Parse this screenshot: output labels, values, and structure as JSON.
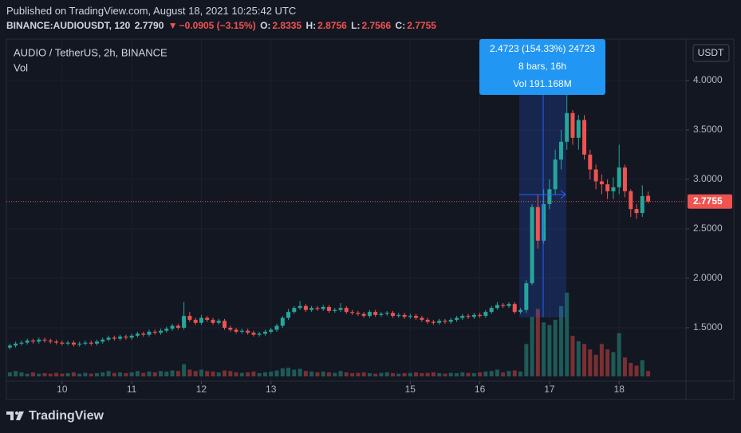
{
  "header": {
    "published": "Published on TradingView.com, August 18, 2021 10:25:42 UTC",
    "symbol": "BINANCE:AUDIOUSDT, 120",
    "last": "2.7790",
    "change": "−0.0905 (−3.15%)",
    "open_label": "O:",
    "open": "2.8335",
    "high_label": "H:",
    "high": "2.8756",
    "low_label": "L:",
    "low": "2.7566",
    "close_label": "C:",
    "close": "2.7755"
  },
  "chart_data": {
    "type": "candlestick",
    "legend": "AUDIO / TetherUS, 2h, BINANCE",
    "volume_label": "Vol",
    "currency": "USDT",
    "up_color": "#26a69a",
    "down_color": "#ef5350",
    "volume_up_color": "#1e5a57",
    "volume_down_color": "#7b2f33",
    "x": [
      9.25,
      9.333,
      9.417,
      9.5,
      9.583,
      9.667,
      9.75,
      9.833,
      9.917,
      10,
      10.083,
      10.167,
      10.25,
      10.333,
      10.417,
      10.5,
      10.583,
      10.667,
      10.75,
      10.833,
      10.917,
      11,
      11.083,
      11.167,
      11.25,
      11.333,
      11.417,
      11.5,
      11.583,
      11.667,
      11.75,
      11.833,
      11.917,
      12,
      12.083,
      12.167,
      12.25,
      12.333,
      12.417,
      12.5,
      12.583,
      12.667,
      12.75,
      12.833,
      12.917,
      13,
      13.083,
      13.167,
      13.25,
      13.333,
      13.417,
      13.5,
      13.583,
      13.667,
      13.75,
      13.833,
      13.917,
      14,
      14.083,
      14.167,
      14.25,
      14.333,
      14.417,
      14.5,
      14.583,
      14.667,
      14.75,
      14.833,
      14.917,
      15,
      15.083,
      15.167,
      15.25,
      15.333,
      15.417,
      15.5,
      15.583,
      15.667,
      15.75,
      15.833,
      15.917,
      16,
      16.083,
      16.167,
      16.25,
      16.333,
      16.417,
      16.5,
      16.583,
      16.667,
      16.75,
      16.833,
      16.917,
      17,
      17.083,
      17.167,
      17.25,
      17.333,
      17.417,
      17.5,
      17.583,
      17.667,
      17.75,
      17.833,
      17.917,
      18,
      18.083,
      18.167,
      18.25,
      18.333,
      18.417
    ],
    "open": [
      1.3,
      1.32,
      1.34,
      1.35,
      1.37,
      1.36,
      1.38,
      1.37,
      1.36,
      1.35,
      1.34,
      1.35,
      1.33,
      1.34,
      1.35,
      1.34,
      1.36,
      1.38,
      1.4,
      1.39,
      1.41,
      1.4,
      1.42,
      1.44,
      1.43,
      1.46,
      1.45,
      1.47,
      1.49,
      1.52,
      1.5,
      1.62,
      1.58,
      1.55,
      1.6,
      1.58,
      1.55,
      1.57,
      1.5,
      1.48,
      1.46,
      1.47,
      1.45,
      1.43,
      1.44,
      1.46,
      1.48,
      1.52,
      1.6,
      1.66,
      1.7,
      1.72,
      1.68,
      1.7,
      1.69,
      1.71,
      1.67,
      1.68,
      1.7,
      1.66,
      1.65,
      1.64,
      1.62,
      1.66,
      1.63,
      1.64,
      1.65,
      1.62,
      1.63,
      1.61,
      1.62,
      1.6,
      1.58,
      1.56,
      1.55,
      1.57,
      1.56,
      1.58,
      1.6,
      1.62,
      1.61,
      1.63,
      1.62,
      1.66,
      1.7,
      1.73,
      1.72,
      1.74,
      1.66,
      1.68,
      1.95,
      2.72,
      2.38,
      2.75,
      2.9,
      3.2,
      3.38,
      3.67,
      3.42,
      3.6,
      3.25,
      3.1,
      2.98,
      2.95,
      2.88,
      2.92,
      3.12,
      2.88,
      2.7,
      2.66,
      2.8335
    ],
    "high": [
      1.34,
      1.36,
      1.37,
      1.39,
      1.39,
      1.4,
      1.4,
      1.39,
      1.38,
      1.37,
      1.37,
      1.37,
      1.36,
      1.37,
      1.37,
      1.38,
      1.4,
      1.42,
      1.42,
      1.43,
      1.43,
      1.44,
      1.46,
      1.46,
      1.48,
      1.48,
      1.49,
      1.51,
      1.54,
      1.54,
      1.76,
      1.66,
      1.6,
      1.63,
      1.62,
      1.6,
      1.59,
      1.59,
      1.52,
      1.5,
      1.49,
      1.49,
      1.47,
      1.46,
      1.48,
      1.5,
      1.54,
      1.62,
      1.69,
      1.72,
      1.77,
      1.74,
      1.72,
      1.72,
      1.73,
      1.73,
      1.7,
      1.75,
      1.72,
      1.68,
      1.67,
      1.66,
      1.68,
      1.68,
      1.66,
      1.67,
      1.67,
      1.65,
      1.65,
      1.64,
      1.64,
      1.62,
      1.6,
      1.58,
      1.59,
      1.59,
      1.6,
      1.62,
      1.64,
      1.64,
      1.65,
      1.65,
      1.68,
      1.72,
      1.76,
      1.75,
      1.76,
      1.76,
      1.7,
      1.98,
      2.75,
      2.85,
      2.9,
      3.0,
      3.3,
      3.5,
      4.1,
      3.7,
      3.65,
      3.65,
      3.3,
      3.15,
      3.05,
      3.0,
      3.02,
      3.35,
      3.15,
      2.9,
      2.75,
      2.94,
      2.8756
    ],
    "low": [
      1.28,
      1.3,
      1.32,
      1.33,
      1.34,
      1.34,
      1.35,
      1.34,
      1.33,
      1.32,
      1.32,
      1.31,
      1.31,
      1.32,
      1.32,
      1.32,
      1.34,
      1.36,
      1.37,
      1.37,
      1.38,
      1.38,
      1.4,
      1.41,
      1.41,
      1.43,
      1.43,
      1.45,
      1.47,
      1.48,
      1.48,
      1.56,
      1.53,
      1.53,
      1.56,
      1.53,
      1.53,
      1.48,
      1.46,
      1.44,
      1.44,
      1.43,
      1.41,
      1.41,
      1.42,
      1.44,
      1.46,
      1.5,
      1.58,
      1.64,
      1.68,
      1.66,
      1.66,
      1.67,
      1.67,
      1.65,
      1.65,
      1.66,
      1.64,
      1.63,
      1.62,
      1.6,
      1.6,
      1.61,
      1.61,
      1.62,
      1.6,
      1.6,
      1.59,
      1.59,
      1.58,
      1.56,
      1.54,
      1.53,
      1.53,
      1.54,
      1.54,
      1.56,
      1.58,
      1.59,
      1.59,
      1.6,
      1.6,
      1.64,
      1.68,
      1.7,
      1.7,
      1.64,
      1.64,
      1.65,
      1.93,
      2.3,
      2.35,
      2.7,
      2.85,
      3.1,
      3.3,
      3.35,
      3.3,
      3.2,
      3.0,
      2.9,
      2.85,
      2.8,
      2.8,
      2.85,
      2.82,
      2.62,
      2.6,
      2.62,
      2.7566
    ],
    "close": [
      1.32,
      1.34,
      1.35,
      1.37,
      1.36,
      1.38,
      1.37,
      1.36,
      1.35,
      1.34,
      1.35,
      1.33,
      1.34,
      1.35,
      1.34,
      1.36,
      1.38,
      1.4,
      1.39,
      1.41,
      1.4,
      1.42,
      1.44,
      1.43,
      1.46,
      1.45,
      1.47,
      1.49,
      1.52,
      1.5,
      1.62,
      1.58,
      1.55,
      1.6,
      1.58,
      1.55,
      1.57,
      1.5,
      1.48,
      1.46,
      1.47,
      1.45,
      1.43,
      1.44,
      1.46,
      1.48,
      1.52,
      1.6,
      1.66,
      1.7,
      1.72,
      1.68,
      1.7,
      1.69,
      1.71,
      1.67,
      1.68,
      1.7,
      1.66,
      1.65,
      1.64,
      1.62,
      1.66,
      1.63,
      1.64,
      1.65,
      1.62,
      1.63,
      1.61,
      1.62,
      1.6,
      1.58,
      1.56,
      1.55,
      1.57,
      1.56,
      1.58,
      1.6,
      1.62,
      1.61,
      1.63,
      1.62,
      1.66,
      1.7,
      1.73,
      1.72,
      1.74,
      1.66,
      1.68,
      1.95,
      2.72,
      2.38,
      2.75,
      2.9,
      3.2,
      3.38,
      3.67,
      3.42,
      3.6,
      3.25,
      3.1,
      2.98,
      2.95,
      2.88,
      2.92,
      3.12,
      2.88,
      2.7,
      2.66,
      2.83,
      2.7755
    ],
    "volume": [
      1.5,
      2,
      1.5,
      1,
      1.5,
      1,
      1.2,
      1,
      1.3,
      1,
      1.2,
      1.5,
      1,
      1.3,
      1,
      1.2,
      1.5,
      2,
      1.3,
      1.5,
      1.2,
      1.5,
      2,
      1.3,
      1.8,
      1.5,
      2,
      1.8,
      2.2,
      2,
      4.5,
      2.5,
      2,
      2.5,
      2,
      1.8,
      1.5,
      2.2,
      2,
      1.5,
      1.3,
      1.5,
      1.8,
      1.2,
      1.5,
      1.8,
      2.2,
      3,
      3.2,
      2.5,
      2.8,
      2,
      1.8,
      1.5,
      1.8,
      1.5,
      1.3,
      2,
      1.5,
      1.2,
      1.3,
      1.5,
      1.2,
      1,
      1.3,
      1.5,
      1.2,
      1,
      1.2,
      1.3,
      1.5,
      1.2,
      1.3,
      1.5,
      1.2,
      1,
      1.3,
      1.2,
      1.5,
      1.3,
      1.2,
      1.5,
      1.8,
      2,
      2.5,
      1.5,
      2,
      2.2,
      1.8,
      12,
      22,
      25,
      20,
      19,
      21,
      26,
      31,
      15,
      13,
      12,
      10,
      8,
      12,
      10,
      9,
      16,
      7,
      5,
      4,
      6,
      2
    ],
    "xlim": [
      9.2,
      18.96
    ],
    "xticks": [
      10,
      11,
      12,
      13,
      15,
      16,
      17,
      18
    ],
    "ylim": [
      0.96,
      4.41
    ],
    "yticks": [
      {
        "value": 1.5,
        "label": "1.5000"
      },
      {
        "value": 2,
        "label": "2.0000"
      },
      {
        "value": 2.5,
        "label": "2.5000"
      },
      {
        "value": 3,
        "label": "3.0000"
      },
      {
        "value": 3.5,
        "label": "3.5000"
      },
      {
        "value": 4,
        "label": "4.0000"
      }
    ],
    "grid": true,
    "last_price": 2.7755,
    "measure": {
      "line1": "2.4723 (154.33%) 24723",
      "line2": "8 bars, 16h",
      "line3": "Vol 191.168M"
    }
  },
  "footer": {
    "logo": "TradingView"
  }
}
